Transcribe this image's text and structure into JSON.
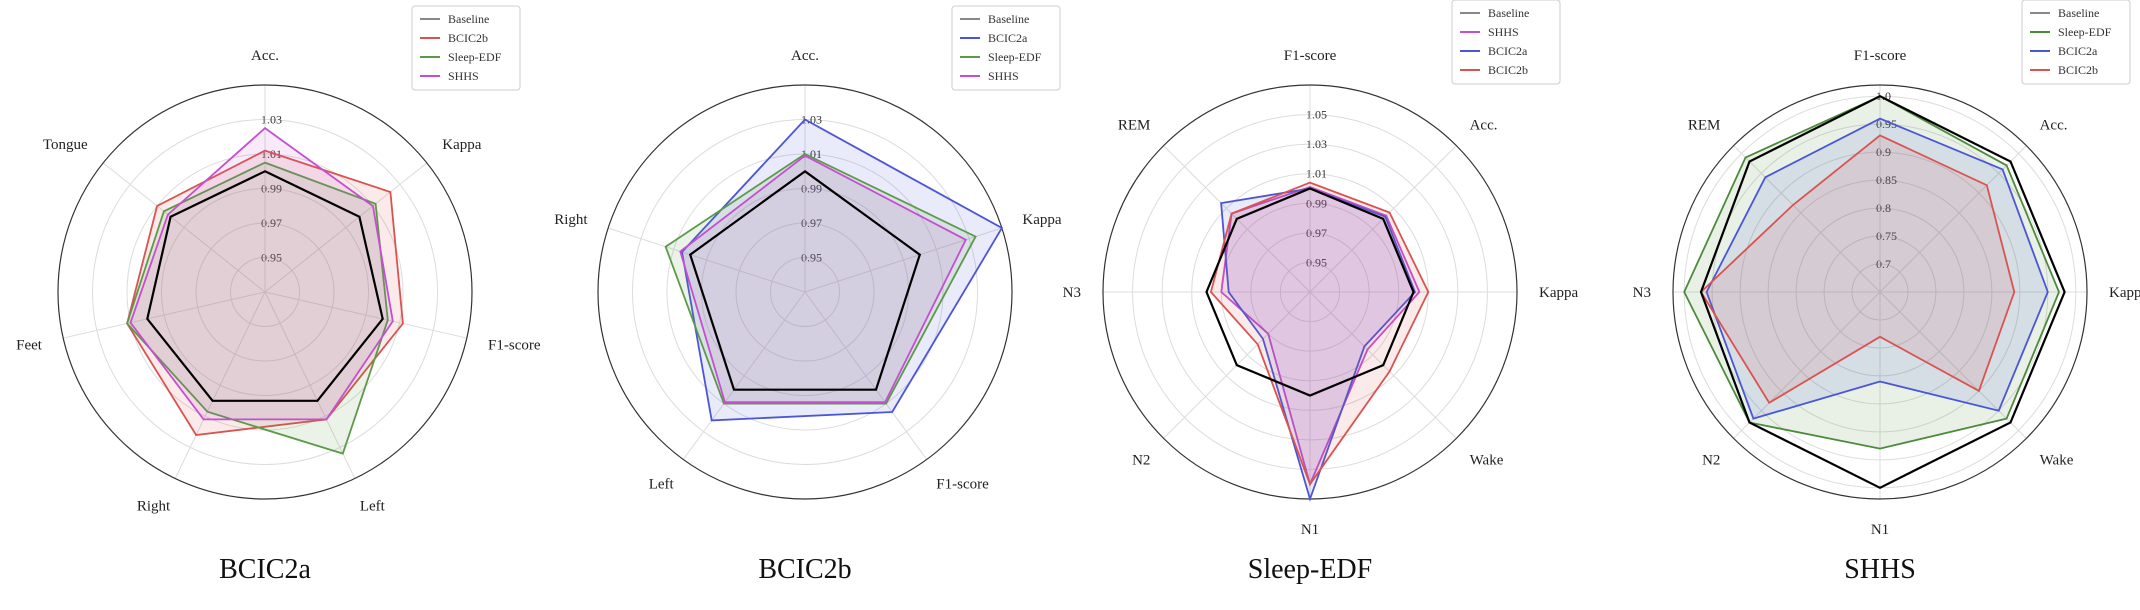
{
  "chart_data": [
    {
      "type": "radar",
      "title": "BCIC2a",
      "axes": [
        "Acc.",
        "Kappa",
        "F1-score",
        "Left",
        "Right",
        "Feet",
        "Tongue"
      ],
      "rlim": [
        0.93,
        1.05
      ],
      "ticks": [
        "0.95",
        "0.97",
        "0.99",
        "1.01",
        "1.03"
      ],
      "legend": [
        "Baseline",
        "BCIC2b",
        "Sleep-EDF",
        "SHHS"
      ],
      "legend_position": "top-right",
      "colors": {
        "Baseline": "#000000",
        "BCIC2b": "#d9534f",
        "Sleep-EDF": "#5c9a48",
        "SHHS": "#c44fd1"
      },
      "series": [
        {
          "name": "Baseline",
          "values": [
            1.0,
            1.0,
            1.0,
            1.0,
            1.0,
            1.0,
            1.0
          ]
        },
        {
          "name": "BCIC2b",
          "values": [
            1.012,
            1.023,
            1.012,
            1.012,
            1.022,
            1.012,
            1.01
          ]
        },
        {
          "name": "Sleep-EDF",
          "values": [
            1.005,
            1.012,
            1.003,
            1.034,
            1.007,
            1.012,
            1.005
          ]
        },
        {
          "name": "SHHS",
          "values": [
            1.025,
            1.01,
            1.006,
            1.012,
            1.012,
            1.01,
            1.002
          ]
        }
      ]
    },
    {
      "type": "radar",
      "title": "BCIC2b",
      "axes": [
        "Acc.",
        "Kappa",
        "F1-score",
        "Left",
        "Right"
      ],
      "rlim": [
        0.93,
        1.05
      ],
      "ticks": [
        "0.95",
        "0.97",
        "0.99",
        "1.01",
        "1.03"
      ],
      "legend": [
        "Baseline",
        "BCIC2a",
        "Sleep-EDF",
        "SHHS"
      ],
      "legend_position": "top-right",
      "colors": {
        "Baseline": "#000000",
        "BCIC2a": "#4a56d6",
        "Sleep-EDF": "#5c9a48",
        "SHHS": "#c44fd1"
      },
      "series": [
        {
          "name": "Baseline",
          "values": [
            1.0,
            1.0,
            1.0,
            1.0,
            1.0
          ]
        },
        {
          "name": "BCIC2a",
          "values": [
            1.03,
            1.05,
            1.016,
            1.022,
            1.005
          ]
        },
        {
          "name": "Sleep-EDF",
          "values": [
            1.01,
            1.034,
            1.01,
            1.01,
            1.015
          ]
        },
        {
          "name": "SHHS",
          "values": [
            1.009,
            1.028,
            1.009,
            1.009,
            1.006
          ]
        }
      ]
    },
    {
      "type": "radar",
      "title": "Sleep-EDF",
      "axes": [
        "F1-score",
        "Acc.",
        "Kappa",
        "Wake",
        "N1",
        "N2",
        "N3",
        "REM"
      ],
      "rlim": [
        0.93,
        1.07
      ],
      "ticks": [
        "0.95",
        "0.97",
        "0.99",
        "1.01",
        "1.03",
        "1.05"
      ],
      "legend": [
        "Baseline",
        "SHHS",
        "BCIC2a",
        "BCIC2b"
      ],
      "legend_position": "top-right",
      "colors": {
        "Baseline": "#000000",
        "SHHS": "#c44fd1",
        "BCIC2a": "#4a56d6",
        "BCIC2b": "#d9534f"
      },
      "series": [
        {
          "name": "Baseline",
          "values": [
            1.0,
            1.0,
            1.0,
            1.0,
            1.0,
            1.0,
            1.0,
            1.0
          ]
        },
        {
          "name": "SHHS",
          "values": [
            1.001,
            1.003,
            1.004,
            0.985,
            1.06,
            0.97,
            0.99,
            1.005
          ]
        },
        {
          "name": "BCIC2a",
          "values": [
            1.0,
            1.002,
            1.001,
            0.982,
            1.07,
            0.975,
            0.985,
            1.015
          ]
        },
        {
          "name": "BCIC2b",
          "values": [
            1.004,
            1.006,
            1.01,
            1.006,
            1.06,
            0.98,
            0.997,
            1.005
          ]
        }
      ]
    },
    {
      "type": "radar",
      "title": "SHHS",
      "axes": [
        "F1-score",
        "Acc.",
        "Kappa",
        "Wake",
        "N1",
        "N2",
        "N3",
        "REM"
      ],
      "rlim": [
        0.65,
        1.02
      ],
      "ticks": [
        "0.7",
        "0.75",
        "0.8",
        "0.85",
        "0.9",
        "0.95",
        "1.0"
      ],
      "legend": [
        "Baseline",
        "Sleep-EDF",
        "BCIC2a",
        "BCIC2b"
      ],
      "legend_position": "top-right",
      "colors": {
        "Baseline": "#000000",
        "Sleep-EDF": "#4c8a3c",
        "BCIC2a": "#4a56d6",
        "BCIC2b": "#d9534f"
      },
      "series": [
        {
          "name": "Baseline",
          "values": [
            1.0,
            0.98,
            0.98,
            0.98,
            1.0,
            0.98,
            0.97,
            0.98
          ]
        },
        {
          "name": "Sleep-EDF",
          "values": [
            1.0,
            0.97,
            0.97,
            0.97,
            0.93,
            0.98,
            1.0,
            0.99
          ]
        },
        {
          "name": "BCIC2a",
          "values": [
            0.96,
            0.96,
            0.95,
            0.95,
            0.81,
            0.97,
            0.96,
            0.94
          ]
        },
        {
          "name": "BCIC2b",
          "values": [
            0.93,
            0.92,
            0.89,
            0.9,
            0.73,
            0.93,
            0.97,
            0.87
          ]
        }
      ]
    }
  ]
}
